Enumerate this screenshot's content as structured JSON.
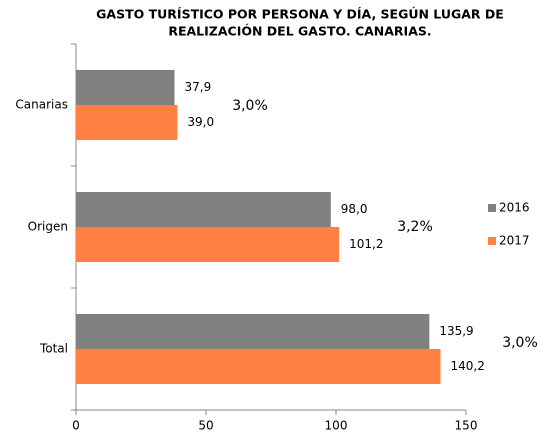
{
  "chart_data": {
    "type": "hbar",
    "title": [
      "GASTO TURÍSTICO POR PERSONA Y DÍA, SEGÚN LUGAR DE",
      "REALIZACIÓN DEL GASTO. CANARIAS."
    ],
    "categories": [
      "Canarias",
      "Origen",
      "Total"
    ],
    "series": [
      {
        "name": "2016",
        "color": "#808080",
        "values": [
          37.9,
          98.0,
          135.9
        ],
        "value_labels": [
          "37,9",
          "98,0",
          "135,9"
        ]
      },
      {
        "name": "2017",
        "color": "#ff8040",
        "values": [
          39.0,
          101.2,
          140.2
        ],
        "value_labels": [
          "39,0",
          "101,2",
          "140,2"
        ]
      }
    ],
    "annotations": [
      "3,0%",
      "3,2%",
      "3,0%"
    ],
    "xlim": [
      0,
      150
    ],
    "xticks": [
      0,
      50,
      100,
      150
    ],
    "legend": "right"
  }
}
